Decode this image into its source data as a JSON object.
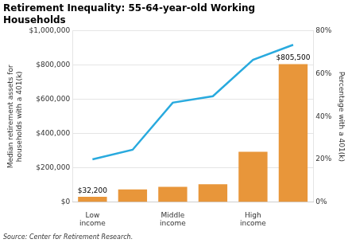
{
  "chart_data": {
    "type": "bar",
    "title": "Retirement Inequality: 55-64-year-old Working\nHouseholds",
    "subtitle": "Source: Center for Retirement Research.",
    "categories": [
      "Low\nincome",
      null,
      "Middle\nincome",
      null,
      "High\nincome",
      null
    ],
    "y_label": "Median retirement assets for\nhouseholds with a 401(k)",
    "y2_label": "Percentage with a 401(k)",
    "ylim": [
      0,
      1000000
    ],
    "yticks": [
      {
        "value": 0,
        "label": "$0"
      },
      {
        "value": 200000,
        "label": "$200,000"
      },
      {
        "value": 400000,
        "label": "$400,000"
      },
      {
        "value": 600000,
        "label": "$600,000"
      },
      {
        "value": 800000,
        "label": "$800,000"
      },
      {
        "value": 1000000,
        "label": "$1,000,000"
      }
    ],
    "y2lim": [
      0,
      0.8
    ],
    "y2ticks": [
      {
        "value": 0.0,
        "label": "0%"
      },
      {
        "value": 0.2,
        "label": "20%"
      },
      {
        "value": 0.4,
        "label": "40%"
      },
      {
        "value": 0.6,
        "label": "60%"
      },
      {
        "value": 0.8,
        "label": "80%"
      }
    ],
    "grid": true,
    "series": [
      {
        "type": "bar",
        "color": "#E8963A",
        "values": [
          32200,
          75000,
          90000,
          105000,
          295000,
          805500
        ],
        "value_labels": [
          "$32,200",
          null,
          null,
          null,
          null,
          "$805,500"
        ]
      },
      {
        "type": "line",
        "color": "#29AADE",
        "axis": "y2",
        "values": [
          0.2,
          0.245,
          0.465,
          0.495,
          0.665,
          0.735
        ]
      }
    ]
  }
}
